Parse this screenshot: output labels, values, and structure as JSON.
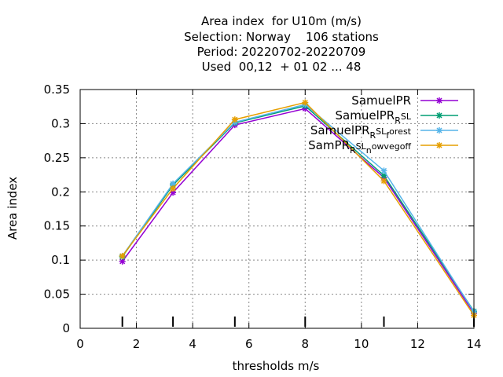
{
  "chart_data": {
    "type": "line",
    "title_lines": [
      "Area index  for U10m (m/s)",
      "Selection: Norway    106 stations",
      "Period: 20220702-20220709",
      "Used  00,12  + 01 02 ... 48"
    ],
    "xlabel": "thresholds m/s",
    "ylabel": "Area index",
    "xlim": [
      0,
      14
    ],
    "ylim": [
      0,
      0.35
    ],
    "x_ticks": [
      0,
      2,
      4,
      6,
      8,
      10,
      12,
      14
    ],
    "y_ticks": [
      0,
      0.05,
      0.1,
      0.15,
      0.2,
      0.25,
      0.3,
      0.35
    ],
    "x_tick_labels": [
      "0",
      "2",
      "4",
      "6",
      "8",
      "10",
      "12",
      "14"
    ],
    "y_tick_labels": [
      "0",
      "0.05",
      "0.1",
      "0.15",
      "0.2",
      "0.25",
      "0.3",
      "0.35"
    ],
    "grid": true,
    "legend_position": "top-right",
    "threshold_markers": [
      1.5,
      3.3,
      5.5,
      8.0,
      10.8,
      14.0
    ],
    "x": [
      1.5,
      3.3,
      5.5,
      8.0,
      10.8,
      14.0
    ],
    "series": [
      {
        "name": "SamuelPR",
        "color": "#9400d3",
        "values": [
          0.098,
          0.199,
          0.298,
          0.322,
          0.221,
          0.022
        ]
      },
      {
        "name": "SamuelPR_R SL",
        "color": "#009e73",
        "values": [
          0.105,
          0.21,
          0.301,
          0.326,
          0.224,
          0.025
        ]
      },
      {
        "name": "SamuelPR_R SL_f orest",
        "color": "#56b4e9",
        "values": [
          0.106,
          0.212,
          0.302,
          0.328,
          0.231,
          0.024
        ]
      },
      {
        "name": "SamPR_R SL_n owvegoff",
        "color": "#e69f00",
        "values": [
          0.106,
          0.205,
          0.306,
          0.331,
          0.216,
          0.019
        ]
      }
    ],
    "legend_labels": [
      {
        "main": "SamuelPR",
        "sub": "",
        "rest": "",
        "sub2": "",
        "rest2": ""
      },
      {
        "main": "SamuelPR",
        "sub": "R",
        "rest": "SL",
        "sub2": "",
        "rest2": ""
      },
      {
        "main": "SamuelPR",
        "sub": "R",
        "rest": "SL",
        "sub2": "f",
        "rest2": "orest"
      },
      {
        "main": "SamPR",
        "sub": "R",
        "rest": "SL",
        "sub2": "n",
        "rest2": "owvegoff"
      }
    ]
  }
}
